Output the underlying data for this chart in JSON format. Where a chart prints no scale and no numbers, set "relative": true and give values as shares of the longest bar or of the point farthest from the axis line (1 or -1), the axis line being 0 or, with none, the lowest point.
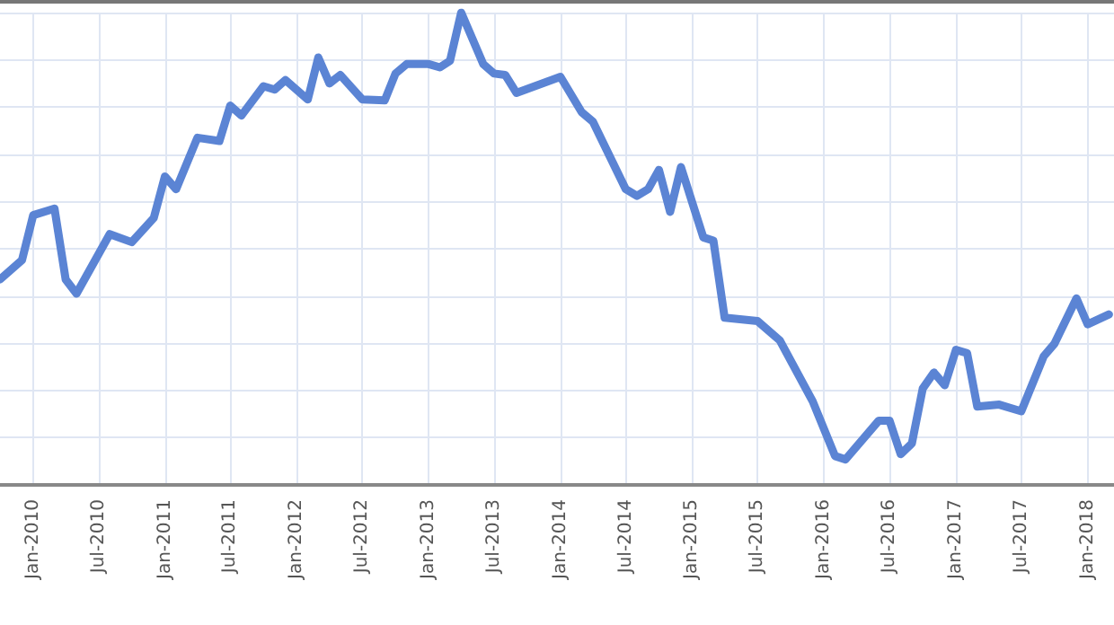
{
  "chart_data": {
    "type": "line",
    "relative": true,
    "grid": true,
    "marker": "none",
    "line_style": "solid",
    "xlim": [
      "2009-10-01",
      "2018-03-15"
    ],
    "xticks": [
      {
        "value": "2010-01",
        "label": "Jan-2010"
      },
      {
        "value": "2010-07",
        "label": "Jul-2010"
      },
      {
        "value": "2011-01",
        "label": "Jan-2011"
      },
      {
        "value": "2011-07",
        "label": "Jul-2011"
      },
      {
        "value": "2012-01",
        "label": "Jan-2012"
      },
      {
        "value": "2012-07",
        "label": "Jul-2012"
      },
      {
        "value": "2013-01",
        "label": "Jan-2013"
      },
      {
        "value": "2013-07",
        "label": "Jul-2013"
      },
      {
        "value": "2014-01",
        "label": "Jan-2014"
      },
      {
        "value": "2014-07",
        "label": "Jul-2014"
      },
      {
        "value": "2015-01",
        "label": "Jan-2015"
      },
      {
        "value": "2015-07",
        "label": "Jul-2015"
      },
      {
        "value": "2016-01",
        "label": "Jan-2016"
      },
      {
        "value": "2016-07",
        "label": "Jul-2016"
      },
      {
        "value": "2017-01",
        "label": "Jan-2017"
      },
      {
        "value": "2017-07",
        "label": "Jul-2017"
      },
      {
        "value": "2018-01",
        "label": "Jan-2018"
      }
    ],
    "x": [
      "2009-10",
      "2009-12",
      "2010-01",
      "2010-03",
      "2010-04",
      "2010-05",
      "2010-08",
      "2010-10",
      "2010-12",
      "2011-01",
      "2011-02",
      "2011-04",
      "2011-06",
      "2011-07",
      "2011-08",
      "2011-10",
      "2011-11",
      "2011-12",
      "2012-02",
      "2012-03",
      "2012-04",
      "2012-05",
      "2012-07",
      "2012-09",
      "2012-10",
      "2012-11",
      "2013-01",
      "2013-02",
      "2013-03",
      "2013-04",
      "2013-06",
      "2013-07",
      "2013-08",
      "2013-09",
      "2014-01",
      "2014-03",
      "2014-04",
      "2014-07",
      "2014-08",
      "2014-09",
      "2014-10",
      "2014-11",
      "2014-12",
      "2015-02",
      "2015-03",
      "2015-04",
      "2015-07",
      "2015-09",
      "2015-12",
      "2016-02",
      "2016-03",
      "2016-06",
      "2016-07",
      "2016-08",
      "2016-09",
      "2016-10",
      "2016-11",
      "2016-12",
      "2017-01",
      "2017-02",
      "2017-03",
      "2017-05",
      "2017-07",
      "2017-09",
      "2017-10",
      "2017-12",
      "2018-01",
      "2018-03"
    ],
    "series": [
      {
        "color": "#5b84d4",
        "values": [
          0.435,
          0.476,
          0.571,
          0.585,
          0.435,
          0.405,
          0.531,
          0.514,
          0.565,
          0.653,
          0.626,
          0.735,
          0.728,
          0.803,
          0.782,
          0.844,
          0.837,
          0.857,
          0.816,
          0.905,
          0.85,
          0.868,
          0.816,
          0.814,
          0.871,
          0.891,
          0.891,
          0.884,
          0.898,
          1.0,
          0.891,
          0.871,
          0.868,
          0.83,
          0.864,
          0.789,
          0.769,
          0.626,
          0.612,
          0.626,
          0.667,
          0.578,
          0.673,
          0.524,
          0.517,
          0.354,
          0.347,
          0.306,
          0.177,
          0.061,
          0.054,
          0.136,
          0.136,
          0.065,
          0.088,
          0.204,
          0.238,
          0.211,
          0.286,
          0.279,
          0.166,
          0.17,
          0.156,
          0.272,
          0.299,
          0.395,
          0.34,
          0.361
        ]
      }
    ]
  }
}
